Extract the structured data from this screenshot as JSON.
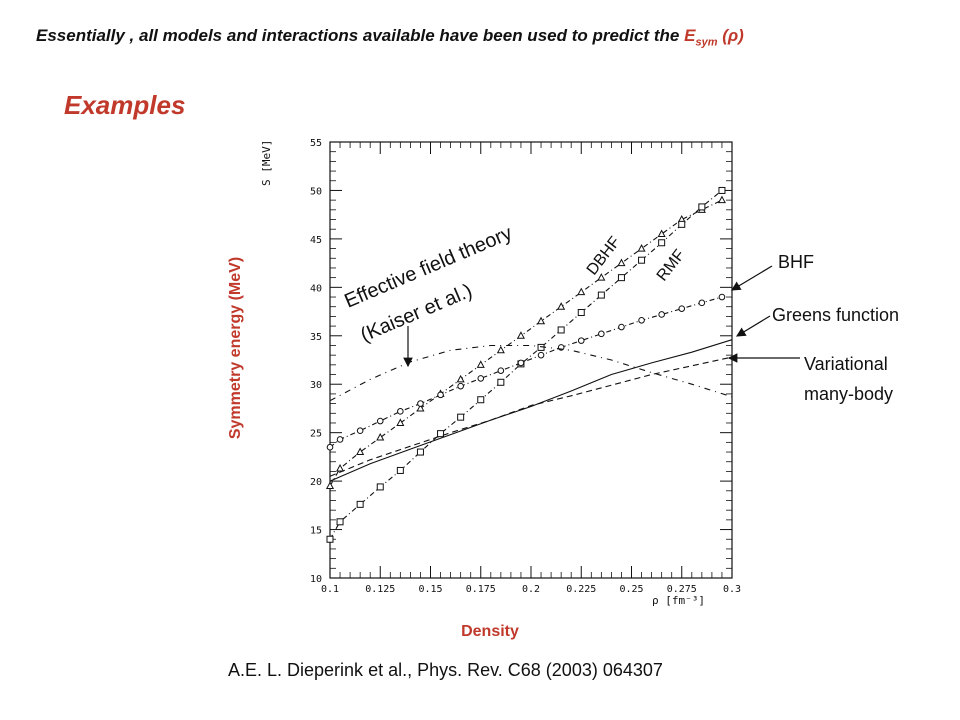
{
  "header": {
    "text": "Essentially , all  models and interactions available have been used to predict the ",
    "esym_main": "E",
    "esym_sub": "sym",
    "esym_arg": " (ρ)"
  },
  "examples_title": "Examples",
  "citation": "A.E. L. Dieperink et al., Phys. Rev. C68 (2003) 064307",
  "colors": {
    "accent": "#c0392b",
    "ink": "#111111"
  },
  "annotations": {
    "eft_line1": "Effective field theory",
    "eft_line2": "(Kaiser et al.)",
    "bhf": "BHF",
    "greens": "Greens function",
    "var_line1": "Variational",
    "var_line2": "many-body"
  },
  "chart_data": {
    "type": "line",
    "xlabel": "Density",
    "ylabel": "Symmetry energy (MeV)",
    "x_unit_label": "ρ [fm⁻³]",
    "y_unit_label": "S [MeV]",
    "xlim": [
      0.1,
      0.3
    ],
    "ylim": [
      10,
      55
    ],
    "x_ticks": [
      "0.1",
      "0.125",
      "0.15",
      "0.175",
      "0.2",
      "0.225",
      "0.25",
      "0.275",
      "0.3"
    ],
    "y_ticks": [
      "10",
      "15",
      "20",
      "25",
      "30",
      "35",
      "40",
      "45",
      "50",
      "55"
    ],
    "grid": false,
    "series": [
      {
        "name": "DBHF",
        "marker": "triangle",
        "line": "dashdot",
        "x": [
          0.1,
          0.105,
          0.115,
          0.125,
          0.135,
          0.145,
          0.155,
          0.165,
          0.175,
          0.185,
          0.195,
          0.205,
          0.215,
          0.225,
          0.235,
          0.245,
          0.255,
          0.265,
          0.275,
          0.285,
          0.295
        ],
        "y": [
          19.5,
          21.3,
          23.0,
          24.5,
          26.0,
          27.5,
          29.0,
          30.5,
          32.0,
          33.5,
          35.0,
          36.5,
          38.0,
          39.5,
          41.0,
          42.5,
          44.0,
          45.5,
          47.0,
          48.0,
          49.0
        ]
      },
      {
        "name": "RMF",
        "marker": "square",
        "line": "dashdot",
        "x": [
          0.1,
          0.105,
          0.115,
          0.125,
          0.135,
          0.145,
          0.155,
          0.165,
          0.175,
          0.185,
          0.195,
          0.205,
          0.215,
          0.225,
          0.235,
          0.245,
          0.255,
          0.265,
          0.275,
          0.285,
          0.295
        ],
        "y": [
          14.0,
          15.8,
          17.6,
          19.4,
          21.1,
          23.0,
          24.9,
          26.6,
          28.4,
          30.2,
          32.1,
          33.8,
          35.6,
          37.4,
          39.2,
          41.0,
          42.8,
          44.6,
          46.5,
          48.3,
          50.0
        ]
      },
      {
        "name": "BHF",
        "marker": "circle",
        "line": "dashdot",
        "x": [
          0.1,
          0.105,
          0.115,
          0.125,
          0.135,
          0.145,
          0.155,
          0.165,
          0.175,
          0.185,
          0.195,
          0.205,
          0.215,
          0.225,
          0.235,
          0.245,
          0.255,
          0.265,
          0.275,
          0.285,
          0.295
        ],
        "y": [
          23.5,
          24.3,
          25.2,
          26.2,
          27.2,
          28.0,
          28.9,
          29.8,
          30.6,
          31.4,
          32.2,
          33.0,
          33.8,
          34.5,
          35.2,
          35.9,
          36.6,
          37.2,
          37.8,
          38.4,
          39.0
        ]
      },
      {
        "name": "Greens function",
        "marker": "none",
        "line": "solid",
        "x": [
          0.1,
          0.12,
          0.14,
          0.16,
          0.18,
          0.2,
          0.22,
          0.24,
          0.26,
          0.28,
          0.3
        ],
        "y": [
          20.0,
          21.8,
          23.3,
          24.8,
          26.3,
          27.7,
          29.3,
          31.0,
          32.2,
          33.3,
          34.6
        ]
      },
      {
        "name": "Variational many-body",
        "marker": "none",
        "line": "dashed",
        "x": [
          0.1,
          0.12,
          0.14,
          0.16,
          0.18,
          0.2,
          0.22,
          0.24,
          0.26,
          0.28,
          0.3
        ],
        "y": [
          20.5,
          22.2,
          23.6,
          25.0,
          26.3,
          27.8,
          28.8,
          29.9,
          31.0,
          31.9,
          32.8
        ]
      },
      {
        "name": "Effective field theory",
        "marker": "none",
        "line": "dashdot-sparse",
        "x": [
          0.1,
          0.12,
          0.14,
          0.16,
          0.18,
          0.2,
          0.22,
          0.24,
          0.26,
          0.28,
          0.3
        ],
        "y": [
          28.3,
          30.5,
          32.3,
          33.5,
          34.0,
          34.0,
          33.5,
          32.5,
          31.2,
          30.0,
          28.7
        ]
      }
    ]
  }
}
